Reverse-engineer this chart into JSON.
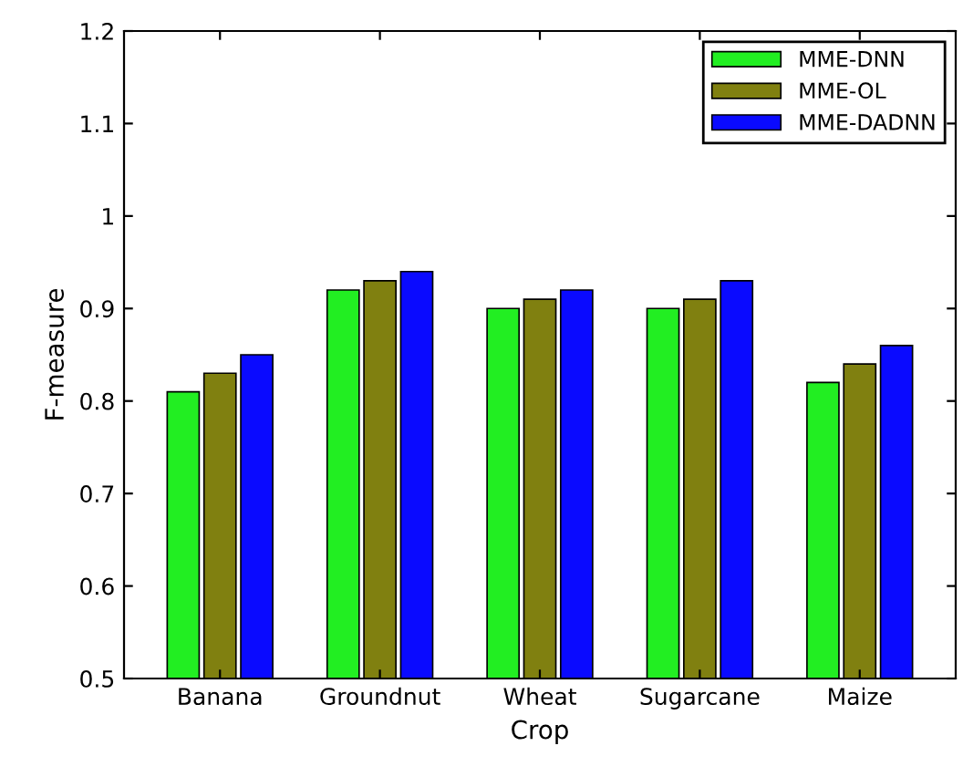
{
  "chart_data": {
    "type": "bar",
    "xlabel": "Crop",
    "ylabel": "F-measure",
    "categories": [
      "Banana",
      "Groundnut",
      "Wheat",
      "Sugarcane",
      "Maize"
    ],
    "series": [
      {
        "name": "MME-DNN",
        "color": "#22ee22",
        "values": [
          0.81,
          0.92,
          0.9,
          0.9,
          0.82
        ]
      },
      {
        "name": "MME-OL",
        "color": "#808010",
        "values": [
          0.83,
          0.93,
          0.91,
          0.91,
          0.84
        ]
      },
      {
        "name": "MME-DADNN",
        "color": "#0a0aff",
        "values": [
          0.85,
          0.94,
          0.92,
          0.93,
          0.86
        ]
      }
    ],
    "ylim": [
      0.5,
      1.2
    ],
    "yticks": [
      0.5,
      0.6,
      0.7,
      0.8,
      0.9,
      1,
      1.1,
      1.2
    ],
    "grid": false,
    "legend": "top right"
  }
}
